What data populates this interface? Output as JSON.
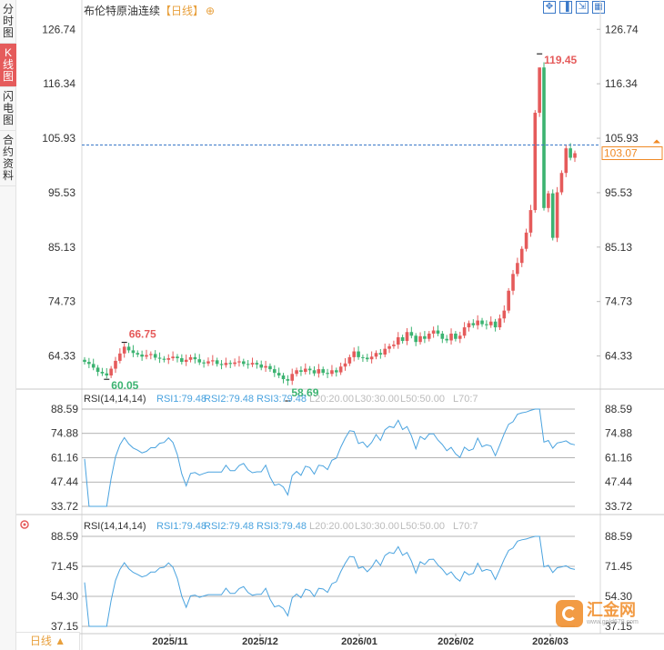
{
  "sidebar": {
    "tabs": [
      {
        "label": "分时图",
        "active": false
      },
      {
        "label": "K线图",
        "active": true
      },
      {
        "label": "闪电图",
        "active": false
      },
      {
        "label": "合约资料",
        "active": false
      }
    ]
  },
  "header": {
    "title": "布伦特原油连续",
    "period": "【日线】",
    "plus_icon": "⊕"
  },
  "toolbar": {
    "icons": [
      "zoom-icon",
      "fit-icon",
      "expand-icon",
      "grid-icon"
    ]
  },
  "footer": {
    "period_button": "日线 ▲"
  },
  "watermark": {
    "name": "汇金网",
    "url": "www.gold678.com"
  },
  "colors": {
    "up": "#e55b5b",
    "down": "#3cb371",
    "rsi_line": "#4aa3df",
    "price_line": "#3a78c8",
    "current_price": "#f08a24"
  },
  "chart_data": [
    {
      "type": "candlestick",
      "name": "price",
      "y_ticks": [
        "126.74",
        "116.34",
        "105.93",
        "95.53",
        "85.13",
        "74.73",
        "64.33"
      ],
      "ylim": [
        58.0,
        128.0
      ],
      "x_labels": [
        "2025/11",
        "2025/12",
        "2026/01",
        "2026/02",
        "2026/03"
      ],
      "current_price": "103.07",
      "annotations": [
        {
          "text": "66.75",
          "kind": "high"
        },
        {
          "text": "60.05",
          "kind": "low"
        },
        {
          "text": "58.69",
          "kind": "low"
        },
        {
          "text": "119.45",
          "kind": "high"
        }
      ],
      "close": [
        63.2,
        62.8,
        62.1,
        61.3,
        61.0,
        60.6,
        61.9,
        63.4,
        64.8,
        66.1,
        65.4,
        64.9,
        64.6,
        64.2,
        64.5,
        64.7,
        64.0,
        63.8,
        63.6,
        63.9,
        64.2,
        63.9,
        63.2,
        63.6,
        64.1,
        63.7,
        63.1,
        62.9,
        63.3,
        63.5,
        62.8,
        62.6,
        63.0,
        62.8,
        63.1,
        63.3,
        62.8,
        62.7,
        63.0,
        62.7,
        62.1,
        62.4,
        61.8,
        61.1,
        60.6,
        59.9,
        59.6,
        60.9,
        61.6,
        61.3,
        61.9,
        61.6,
        61.0,
        61.8,
        61.1,
        60.9,
        61.6,
        61.2,
        62.3,
        62.9,
        64.1,
        65.2,
        64.1,
        64.0,
        63.7,
        64.2,
        64.9,
        64.6,
        65.7,
        66.2,
        66.5,
        67.9,
        67.2,
        68.9,
        68.2,
        67.0,
        68.1,
        67.6,
        68.6,
        69.2,
        68.6,
        67.6,
        67.3,
        68.6,
        67.6,
        68.2,
        69.8,
        70.6,
        70.2,
        71.1,
        70.4,
        70.2,
        70.9,
        69.8,
        71.5,
        73.0,
        76.8,
        80.0,
        82.1,
        84.8,
        87.9,
        92.2,
        110.8,
        119.45,
        92.6,
        95.4,
        86.9,
        95.6,
        99.3,
        104.0,
        102.2,
        103.07
      ],
      "rsi_ticks": [
        "88.59",
        "74.88",
        "61.16",
        "47.44",
        "33.72"
      ],
      "rsi2_ticks": [
        "88.59",
        "71.45",
        "54.30",
        "37.15"
      ],
      "rsi_header": [
        "RSI(14,14,14)",
        "RSI1:79.48",
        "RSI2:79.48",
        "RSI3:79.48",
        "L20:20.00",
        "L30:30.00",
        "L50:50.00",
        "L70:7"
      ]
    }
  ]
}
